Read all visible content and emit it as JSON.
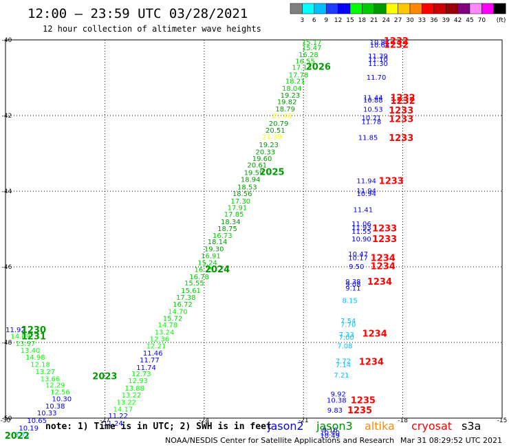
{
  "header": {
    "title": "12:00 – 23:59 UTC 03/28/2021",
    "subtitle": "12 hour collection of altimeter wave heights"
  },
  "scale": {
    "unit": "(ft)",
    "labels": [
      "3",
      "6",
      "9",
      "12",
      "15",
      "18",
      "21",
      "24",
      "27",
      "30",
      "33",
      "36",
      "39",
      "42",
      "45",
      "70"
    ],
    "colors": [
      "#808080",
      "#00ffff",
      "#00bfff",
      "#1e3cff",
      "#0000ff",
      "#00ff00",
      "#00cc00",
      "#009900",
      "#ffff00",
      "#ffc800",
      "#ff8800",
      "#ff0000",
      "#cc0000",
      "#990000",
      "#800080",
      "#ff88ff",
      "#ff00ff",
      "#000000"
    ]
  },
  "note": "note:  1) Time is in UTC;  2) SWH is in feet",
  "legend": [
    {
      "name": "jason2",
      "color": "#0000ff"
    },
    {
      "name": "jason3",
      "color": "#008800"
    },
    {
      "name": "altika",
      "color": "#ff8800"
    },
    {
      "name": "cryosat",
      "color": "#ff0000"
    },
    {
      "name": "s3a",
      "color": "#000000"
    }
  ],
  "footer": {
    "left": "NOAA/NESDIS Center for Satellite Applications and Research",
    "right": "Mar 31 08:29:52 UTC 2021"
  },
  "chart_data": {
    "type": "scatter",
    "title": "12:00 – 23:59 UTC 03/28/2021",
    "subtitle": "12 hour collection of altimeter wave heights",
    "xlim": [
      -30,
      -15
    ],
    "ylim": [
      -50,
      -40
    ],
    "x_ticks": [
      -30,
      -27,
      -24,
      -21,
      -18,
      -15
    ],
    "y_ticks": [
      -40,
      -42,
      -44,
      -46,
      -48,
      -50
    ],
    "x_tick_labels": [
      "-30",
      "-27",
      "-24",
      "-21",
      "-18",
      "-15"
    ],
    "y_tick_labels": [
      "-40",
      "-42",
      "-44",
      "-46",
      "-48",
      "-50"
    ],
    "grid": true,
    "points": [
      {
        "x": -20.75,
        "y": -40.05,
        "v": "15.17",
        "c": "#00cc00"
      },
      {
        "x": -20.75,
        "y": -40.2,
        "v": "15.47",
        "c": "#00cc00"
      },
      {
        "x": -20.85,
        "y": -40.38,
        "v": "16.28",
        "c": "#00cc00"
      },
      {
        "x": -20.95,
        "y": -40.55,
        "v": "16.55",
        "c": "#00cc00"
      },
      {
        "x": -21.05,
        "y": -40.72,
        "v": "17.13",
        "c": "#00cc00"
      },
      {
        "x": -21.15,
        "y": -40.92,
        "v": "17.78",
        "c": "#00cc00"
      },
      {
        "x": -21.25,
        "y": -41.08,
        "v": "18.21",
        "c": "#00cc00"
      },
      {
        "x": -21.35,
        "y": -41.27,
        "v": "18.04",
        "c": "#00cc00"
      },
      {
        "x": -21.4,
        "y": -41.45,
        "v": "19.23",
        "c": "#009900"
      },
      {
        "x": -21.5,
        "y": -41.63,
        "v": "19.82",
        "c": "#009900"
      },
      {
        "x": -21.55,
        "y": -41.82,
        "v": "18.79",
        "c": "#009900"
      },
      {
        "x": -21.65,
        "y": -42.0,
        "v": "21.46",
        "c": "#ffff00"
      },
      {
        "x": -21.75,
        "y": -42.2,
        "v": "20.79",
        "c": "#009900"
      },
      {
        "x": -21.85,
        "y": -42.38,
        "v": "20.51",
        "c": "#009900"
      },
      {
        "x": -21.95,
        "y": -42.55,
        "v": "21.39",
        "c": "#ffff00"
      },
      {
        "x": -22.05,
        "y": -42.76,
        "v": "19.23",
        "c": "#009900"
      },
      {
        "x": -22.15,
        "y": -42.95,
        "v": "20.33",
        "c": "#009900"
      },
      {
        "x": -22.25,
        "y": -43.13,
        "v": "19.60",
        "c": "#009900"
      },
      {
        "x": -22.4,
        "y": -43.3,
        "v": "20.61",
        "c": "#009900"
      },
      {
        "x": -22.5,
        "y": -43.5,
        "v": "19.59",
        "c": "#009900"
      },
      {
        "x": -22.6,
        "y": -43.68,
        "v": "18.94",
        "c": "#009900"
      },
      {
        "x": -22.7,
        "y": -43.88,
        "v": "18.53",
        "c": "#009900"
      },
      {
        "x": -22.85,
        "y": -44.05,
        "v": "18.56",
        "c": "#009900"
      },
      {
        "x": -22.9,
        "y": -44.25,
        "v": "17.30",
        "c": "#00cc00"
      },
      {
        "x": -23.0,
        "y": -44.43,
        "v": "17.91",
        "c": "#00cc00"
      },
      {
        "x": -23.1,
        "y": -44.6,
        "v": "17.85",
        "c": "#00cc00"
      },
      {
        "x": -23.2,
        "y": -44.8,
        "v": "18.34",
        "c": "#009900"
      },
      {
        "x": -23.3,
        "y": -44.98,
        "v": "18.75",
        "c": "#009900"
      },
      {
        "x": -23.45,
        "y": -45.16,
        "v": "16.73",
        "c": "#00cc00"
      },
      {
        "x": -23.6,
        "y": -45.33,
        "v": "18.14",
        "c": "#009900"
      },
      {
        "x": -23.7,
        "y": -45.52,
        "v": "19.30",
        "c": "#009900"
      },
      {
        "x": -23.8,
        "y": -45.7,
        "v": "16.91",
        "c": "#00cc00"
      },
      {
        "x": -23.9,
        "y": -45.88,
        "v": "15.24",
        "c": "#00cc00"
      },
      {
        "x": -24.0,
        "y": -46.06,
        "v": "16.75",
        "c": "#00cc00"
      },
      {
        "x": -24.15,
        "y": -46.25,
        "v": "16.78",
        "c": "#00cc00"
      },
      {
        "x": -24.3,
        "y": -46.42,
        "v": "15.55",
        "c": "#00cc00"
      },
      {
        "x": -24.4,
        "y": -46.62,
        "v": "15.61",
        "c": "#00cc00"
      },
      {
        "x": -24.55,
        "y": -46.8,
        "v": "17.38",
        "c": "#00cc00"
      },
      {
        "x": -24.65,
        "y": -46.98,
        "v": "16.72",
        "c": "#00cc00"
      },
      {
        "x": -24.8,
        "y": -47.17,
        "v": "14.70",
        "c": "#00ff00"
      },
      {
        "x": -24.95,
        "y": -47.35,
        "v": "15.72",
        "c": "#00cc00"
      },
      {
        "x": -25.1,
        "y": -47.53,
        "v": "14.78",
        "c": "#00ff00"
      },
      {
        "x": -25.2,
        "y": -47.72,
        "v": "13.24",
        "c": "#00ff00"
      },
      {
        "x": -25.35,
        "y": -47.9,
        "v": "12.36",
        "c": "#00ff00"
      },
      {
        "x": -25.45,
        "y": -48.08,
        "v": "12.21",
        "c": "#00ff00"
      },
      {
        "x": -25.55,
        "y": -48.27,
        "v": "11.46",
        "c": "#0000ff"
      },
      {
        "x": -25.65,
        "y": -48.45,
        "v": "11.77",
        "c": "#0000ff"
      },
      {
        "x": -25.75,
        "y": -48.65,
        "v": "11.74",
        "c": "#0000ff"
      },
      {
        "x": -25.9,
        "y": -48.82,
        "v": "12.73",
        "c": "#00ff00"
      },
      {
        "x": -26.0,
        "y": -49.0,
        "v": "12.93",
        "c": "#00ff00"
      },
      {
        "x": -26.1,
        "y": -49.2,
        "v": "13.88",
        "c": "#00ff00"
      },
      {
        "x": -26.2,
        "y": -49.38,
        "v": "13.22",
        "c": "#00ff00"
      },
      {
        "x": -26.35,
        "y": -49.57,
        "v": "13.22",
        "c": "#00ff00"
      },
      {
        "x": -26.45,
        "y": -49.75,
        "v": "14.17",
        "c": "#00ff00"
      },
      {
        "x": -26.6,
        "y": -49.93,
        "v": "11.22",
        "c": "#0000ff"
      },
      {
        "x": -26.75,
        "y": -50.13,
        "v": "11.24",
        "c": "#0000ff"
      },
      {
        "x": -29.7,
        "y": -47.65,
        "v": "11.92",
        "c": "#0000ff"
      },
      {
        "x": -29.55,
        "y": -47.83,
        "v": "14.09",
        "c": "#00ff00"
      },
      {
        "x": -29.4,
        "y": -48.02,
        "v": "13.97",
        "c": "#00ff00"
      },
      {
        "x": -29.25,
        "y": -48.2,
        "v": "13.40",
        "c": "#00ff00"
      },
      {
        "x": -29.1,
        "y": -48.38,
        "v": "14.98",
        "c": "#00ff00"
      },
      {
        "x": -28.95,
        "y": -48.57,
        "v": "12.18",
        "c": "#00ff00"
      },
      {
        "x": -28.8,
        "y": -48.76,
        "v": "13.27",
        "c": "#00ff00"
      },
      {
        "x": -28.65,
        "y": -48.95,
        "v": "13.66",
        "c": "#00ff00"
      },
      {
        "x": -28.5,
        "y": -49.12,
        "v": "12.29",
        "c": "#00ff00"
      },
      {
        "x": -28.35,
        "y": -49.3,
        "v": "12.56",
        "c": "#00ff00"
      },
      {
        "x": -28.3,
        "y": -49.48,
        "v": "10.30",
        "c": "#0000ff"
      },
      {
        "x": -28.5,
        "y": -49.67,
        "v": "10.38",
        "c": "#0000ff"
      },
      {
        "x": -28.75,
        "y": -49.85,
        "v": "10.33",
        "c": "#0000ff"
      },
      {
        "x": -29.05,
        "y": -50.05,
        "v": "10.65",
        "c": "#0000ff"
      },
      {
        "x": -29.3,
        "y": -50.25,
        "v": "10.19",
        "c": "#0000ff"
      },
      {
        "x": -29.5,
        "y": -50.43,
        "v": "8.71",
        "c": "#00bfff"
      },
      {
        "x": -18.7,
        "y": -40.05,
        "v": "10.87",
        "c": "#0000ff"
      },
      {
        "x": -18.7,
        "y": -40.13,
        "v": "10.64",
        "c": "#0000ff"
      },
      {
        "x": -18.75,
        "y": -40.42,
        "v": "11.39",
        "c": "#0000ff"
      },
      {
        "x": -18.75,
        "y": -40.5,
        "v": "11.10",
        "c": "#0000ff"
      },
      {
        "x": -18.75,
        "y": -40.62,
        "v": "11.30",
        "c": "#0000ff"
      },
      {
        "x": -18.8,
        "y": -40.98,
        "v": "11.70",
        "c": "#0000ff"
      },
      {
        "x": -18.9,
        "y": -41.52,
        "v": "11.44",
        "c": "#0000ff"
      },
      {
        "x": -18.9,
        "y": -41.58,
        "v": "10.88",
        "c": "#0000ff"
      },
      {
        "x": -18.9,
        "y": -41.83,
        "v": "10.53",
        "c": "#0000ff"
      },
      {
        "x": -18.95,
        "y": -42.05,
        "v": "10.71",
        "c": "#0000ff"
      },
      {
        "x": -18.95,
        "y": -42.15,
        "v": "11.78",
        "c": "#0000ff"
      },
      {
        "x": -19.05,
        "y": -42.57,
        "v": "11.85",
        "c": "#0000ff"
      },
      {
        "x": -19.1,
        "y": -43.72,
        "v": "11.94",
        "c": "#0000ff"
      },
      {
        "x": -19.1,
        "y": -43.98,
        "v": "11.94",
        "c": "#0000ff"
      },
      {
        "x": -19.1,
        "y": -44.05,
        "v": "10.94",
        "c": "#0000ff"
      },
      {
        "x": -19.2,
        "y": -44.48,
        "v": "11.41",
        "c": "#0000ff"
      },
      {
        "x": -19.25,
        "y": -44.85,
        "v": "11.06",
        "c": "#0000ff"
      },
      {
        "x": -19.25,
        "y": -44.95,
        "v": "11.93",
        "c": "#0000ff"
      },
      {
        "x": -19.25,
        "y": -45.05,
        "v": "11.55",
        "c": "#0000ff"
      },
      {
        "x": -19.25,
        "y": -45.25,
        "v": "10.90",
        "c": "#0000ff"
      },
      {
        "x": -19.35,
        "y": -45.65,
        "v": "10.47",
        "c": "#0000ff"
      },
      {
        "x": -19.35,
        "y": -45.75,
        "v": "10.17",
        "c": "#0000ff"
      },
      {
        "x": -19.4,
        "y": -45.98,
        "v": "9.50",
        "c": "#0000ff"
      },
      {
        "x": -19.5,
        "y": -46.38,
        "v": "9.38",
        "c": "#0000ff"
      },
      {
        "x": -19.5,
        "y": -46.45,
        "v": "9.08",
        "c": "#0000ff"
      },
      {
        "x": -19.5,
        "y": -46.55,
        "v": "9.11",
        "c": "#0000ff"
      },
      {
        "x": -19.6,
        "y": -46.88,
        "v": "8.15",
        "c": "#00bfff"
      },
      {
        "x": -19.65,
        "y": -47.42,
        "v": "7.54",
        "c": "#00bfff"
      },
      {
        "x": -19.65,
        "y": -47.52,
        "v": "7.70",
        "c": "#00bfff"
      },
      {
        "x": -19.7,
        "y": -47.78,
        "v": "7.33",
        "c": "#00bfff"
      },
      {
        "x": -19.7,
        "y": -47.85,
        "v": "7.00",
        "c": "#00bfff"
      },
      {
        "x": -19.75,
        "y": -48.08,
        "v": "7.08",
        "c": "#00bfff"
      },
      {
        "x": -19.8,
        "y": -48.48,
        "v": "7.72",
        "c": "#00bfff"
      },
      {
        "x": -19.8,
        "y": -48.58,
        "v": "7.14",
        "c": "#00bfff"
      },
      {
        "x": -19.85,
        "y": -48.85,
        "v": "7.21",
        "c": "#00bfff"
      },
      {
        "x": -19.95,
        "y": -49.35,
        "v": "9.92",
        "c": "#0000ff"
      },
      {
        "x": -20.0,
        "y": -49.52,
        "v": "10.38",
        "c": "#0000ff"
      },
      {
        "x": -20.05,
        "y": -49.78,
        "v": "9.83",
        "c": "#0000ff"
      },
      {
        "x": -20.2,
        "y": -50.3,
        "v": "9.16",
        "c": "#0000ff"
      },
      {
        "x": -20.2,
        "y": -50.38,
        "v": "10.40",
        "c": "#0000ff"
      },
      {
        "x": -20.2,
        "y": -50.45,
        "v": "10.49",
        "c": "#0000ff"
      }
    ],
    "time_labels": [
      {
        "x": -20.55,
        "y": -40.7,
        "t": "2026",
        "c": "#009900"
      },
      {
        "x": -21.95,
        "y": -43.48,
        "t": "2025",
        "c": "#009900"
      },
      {
        "x": -23.6,
        "y": -46.05,
        "t": "2024",
        "c": "#009900"
      },
      {
        "x": -27.0,
        "y": -48.88,
        "t": "2023",
        "c": "#009900"
      },
      {
        "x": -29.65,
        "y": -50.45,
        "t": "2022",
        "c": "#009900"
      },
      {
        "x": -29.15,
        "y": -47.65,
        "t": "1230",
        "c": "#009900"
      },
      {
        "x": -29.15,
        "y": -47.83,
        "t": "1231",
        "c": "#009900"
      },
      {
        "x": -18.2,
        "y": -40.02,
        "t": "1232",
        "c": "#ff0000"
      },
      {
        "x": -18.2,
        "y": -40.12,
        "t": "1232",
        "c": "#ff0000"
      },
      {
        "x": -18.0,
        "y": -41.52,
        "t": "1232",
        "c": "#ff0000"
      },
      {
        "x": -18.0,
        "y": -41.6,
        "t": "1232",
        "c": "#ff0000"
      },
      {
        "x": -18.05,
        "y": -41.85,
        "t": "1233",
        "c": "#ff0000"
      },
      {
        "x": -18.05,
        "y": -42.08,
        "t": "1233",
        "c": "#ff0000"
      },
      {
        "x": -18.05,
        "y": -42.58,
        "t": "1233",
        "c": "#ff0000"
      },
      {
        "x": -18.35,
        "y": -43.72,
        "t": "1233",
        "c": "#ff0000"
      },
      {
        "x": -18.55,
        "y": -44.97,
        "t": "1233",
        "c": "#ff0000"
      },
      {
        "x": -18.55,
        "y": -45.25,
        "t": "1233",
        "c": "#ff0000"
      },
      {
        "x": -18.6,
        "y": -45.75,
        "t": "1234",
        "c": "#ff0000"
      },
      {
        "x": -18.6,
        "y": -45.97,
        "t": "1234",
        "c": "#ff0000"
      },
      {
        "x": -18.7,
        "y": -46.38,
        "t": "1234",
        "c": "#ff0000"
      },
      {
        "x": -18.85,
        "y": -47.75,
        "t": "1234",
        "c": "#ff0000"
      },
      {
        "x": -18.95,
        "y": -48.5,
        "t": "1234",
        "c": "#ff0000"
      },
      {
        "x": -19.2,
        "y": -49.52,
        "t": "1235",
        "c": "#ff0000"
      },
      {
        "x": -19.3,
        "y": -49.78,
        "t": "1235",
        "c": "#ff0000"
      }
    ]
  }
}
